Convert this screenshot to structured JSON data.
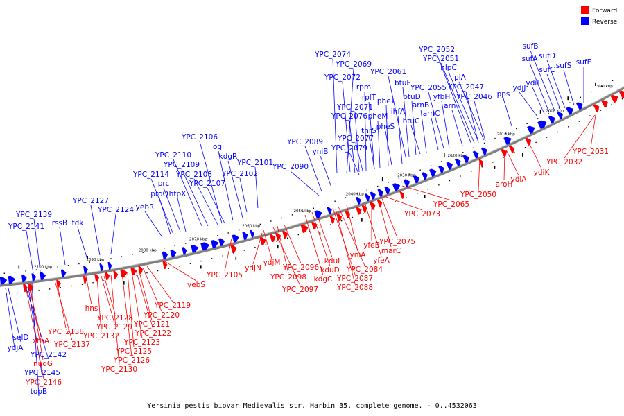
{
  "caption": "Yersinia pestis biovar Medievalis str. Harbin 35, complete genome. - 0..4532063",
  "colors": {
    "forward": "#ff0000",
    "reverse": "#0000ff",
    "backbone": "#808080"
  },
  "legend": [
    {
      "key": "forward",
      "label": "Forward"
    },
    {
      "key": "reverse",
      "label": "Reverse"
    }
  ],
  "ticks": [
    "1990 kbp",
    "2000 kbp",
    "2010 kbp",
    "2020 kbp",
    "2030 kbp",
    "2040 kbp",
    "2050 kbp",
    "2060 kbp",
    "2070 kbp",
    "2080 kbp",
    "2090 kbp",
    "2100 kbp"
  ],
  "reverse_labels": [
    "YPC_2074",
    "YPC_2069",
    "YPC_2072",
    "YPC_2061",
    "rpmI",
    "rplT",
    "btuE",
    "YPC_2055",
    "YPC_2047",
    "pheT",
    "btuD",
    "arnB",
    "yfbH",
    "YPC_2046",
    "YPC_2071",
    "ihfA",
    "arnC",
    "arnT",
    "YPC_2076",
    "pheM",
    "btuC",
    "pheS",
    "thrS",
    "YPC_2052",
    "YPC_2051",
    "nlpC",
    "lplA",
    "pps",
    "sufB",
    "sufA",
    "sufD",
    "sufC",
    "sufS",
    "sufE",
    "ydjJ",
    "ydiI",
    "YPC_2077",
    "YPC_2079",
    "YPC_2089",
    "yniB",
    "YPC_2090",
    "YPC_2106",
    "ogl",
    "kdgR",
    "YPC_2110",
    "YPC_2109",
    "YPC_2108",
    "YPC_2101",
    "YPC_2114",
    "prc",
    "YPC_2102",
    "YPC_2107",
    "proQ",
    "htpX",
    "YPC_2127",
    "YPC_2124",
    "yebR",
    "YPC_2139",
    "rssB",
    "tdk",
    "YPC_2141",
    "selD",
    "ydjA",
    "YPC_2142",
    "YPC_2145",
    "topB"
  ],
  "forward_labels": [
    "YPC_2031",
    "YPC_2032",
    "ydiK",
    "ydiA",
    "aroH",
    "YPC_2050",
    "YPC_2065",
    "YPC_2073",
    "YPC_2075",
    "marC",
    "yfeB",
    "yfeA",
    "yniA",
    "YPC_2084",
    "YPC_2087",
    "YPC_2088",
    "kduI",
    "kduD",
    "kdgC",
    "YPC_2096",
    "YPC_2098",
    "YPC_2097",
    "ydjM",
    "ydjN",
    "YPC_2105",
    "yebS",
    "YPC_2119",
    "YPC_2120",
    "YPC_2121",
    "YPC_2122",
    "YPC_2123",
    "YPC_2125",
    "YPC_2126",
    "YPC_2130",
    "hns",
    "YPC_2128",
    "YPC_2129",
    "YPC_2132",
    "YPC_2138",
    "YPC_2137",
    "xthA",
    "nudG",
    "YPC_2146"
  ]
}
